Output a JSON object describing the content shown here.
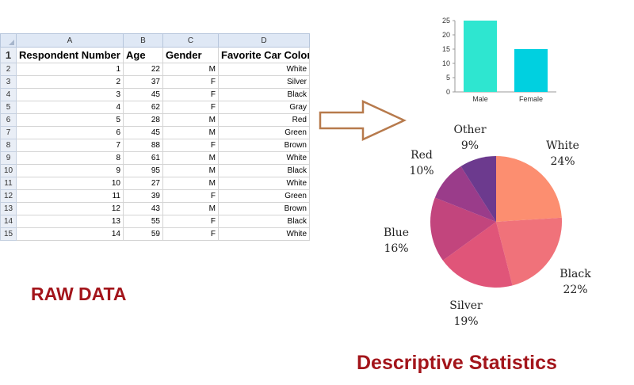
{
  "spreadsheet": {
    "column_letters": [
      "A",
      "B",
      "C",
      "D"
    ],
    "headers": [
      "Respondent Number",
      "Age",
      "Gender",
      "Favorite Car Color"
    ],
    "row_numbers": [
      "1",
      "2",
      "3",
      "4",
      "5",
      "6",
      "7",
      "8",
      "9",
      "10",
      "11",
      "12",
      "13",
      "14",
      "15"
    ],
    "rows": [
      [
        "1",
        "22",
        "M",
        "White"
      ],
      [
        "2",
        "37",
        "F",
        "Silver"
      ],
      [
        "3",
        "45",
        "F",
        "Black"
      ],
      [
        "4",
        "62",
        "F",
        "Gray"
      ],
      [
        "5",
        "28",
        "M",
        "Red"
      ],
      [
        "6",
        "45",
        "M",
        "Green"
      ],
      [
        "7",
        "88",
        "F",
        "Brown"
      ],
      [
        "8",
        "61",
        "M",
        "White"
      ],
      [
        "9",
        "95",
        "M",
        "Black"
      ],
      [
        "10",
        "27",
        "M",
        "White"
      ],
      [
        "11",
        "39",
        "F",
        "Green"
      ],
      [
        "12",
        "43",
        "M",
        "Brown"
      ],
      [
        "13",
        "55",
        "F",
        "Black"
      ],
      [
        "14",
        "59",
        "F",
        "White"
      ]
    ]
  },
  "labels": {
    "raw_data": "RAW DATA",
    "descriptive_statistics": "Descriptive Statistics"
  },
  "colors": {
    "label_red": "#a3151b",
    "arrow": "#b77a4c",
    "bar_male": "#2ee6d0",
    "bar_female": "#00d0e0"
  },
  "chart_data": [
    {
      "type": "bar",
      "categories": [
        "Male",
        "Female"
      ],
      "values": [
        25,
        15
      ],
      "ylim": [
        0,
        25
      ],
      "yticks": [
        0,
        5,
        10,
        15,
        20,
        25
      ],
      "grid": false,
      "title": "",
      "xlabel": "",
      "ylabel": ""
    },
    {
      "type": "pie",
      "slices": [
        {
          "name": "White",
          "value": 24,
          "label": "24%",
          "color": "#fc8e70"
        },
        {
          "name": "Black",
          "value": 22,
          "label": "22%",
          "color": "#f0727a"
        },
        {
          "name": "Silver",
          "value": 19,
          "label": "19%",
          "color": "#e05579"
        },
        {
          "name": "Blue",
          "value": 16,
          "label": "16%",
          "color": "#c2457d"
        },
        {
          "name": "Red",
          "value": 10,
          "label": "10%",
          "color": "#9a3c8a"
        },
        {
          "name": "Other",
          "value": 9,
          "label": "9%",
          "color": "#6c3a8e"
        }
      ],
      "start_angle_deg": 0,
      "direction": "clockwise"
    }
  ]
}
